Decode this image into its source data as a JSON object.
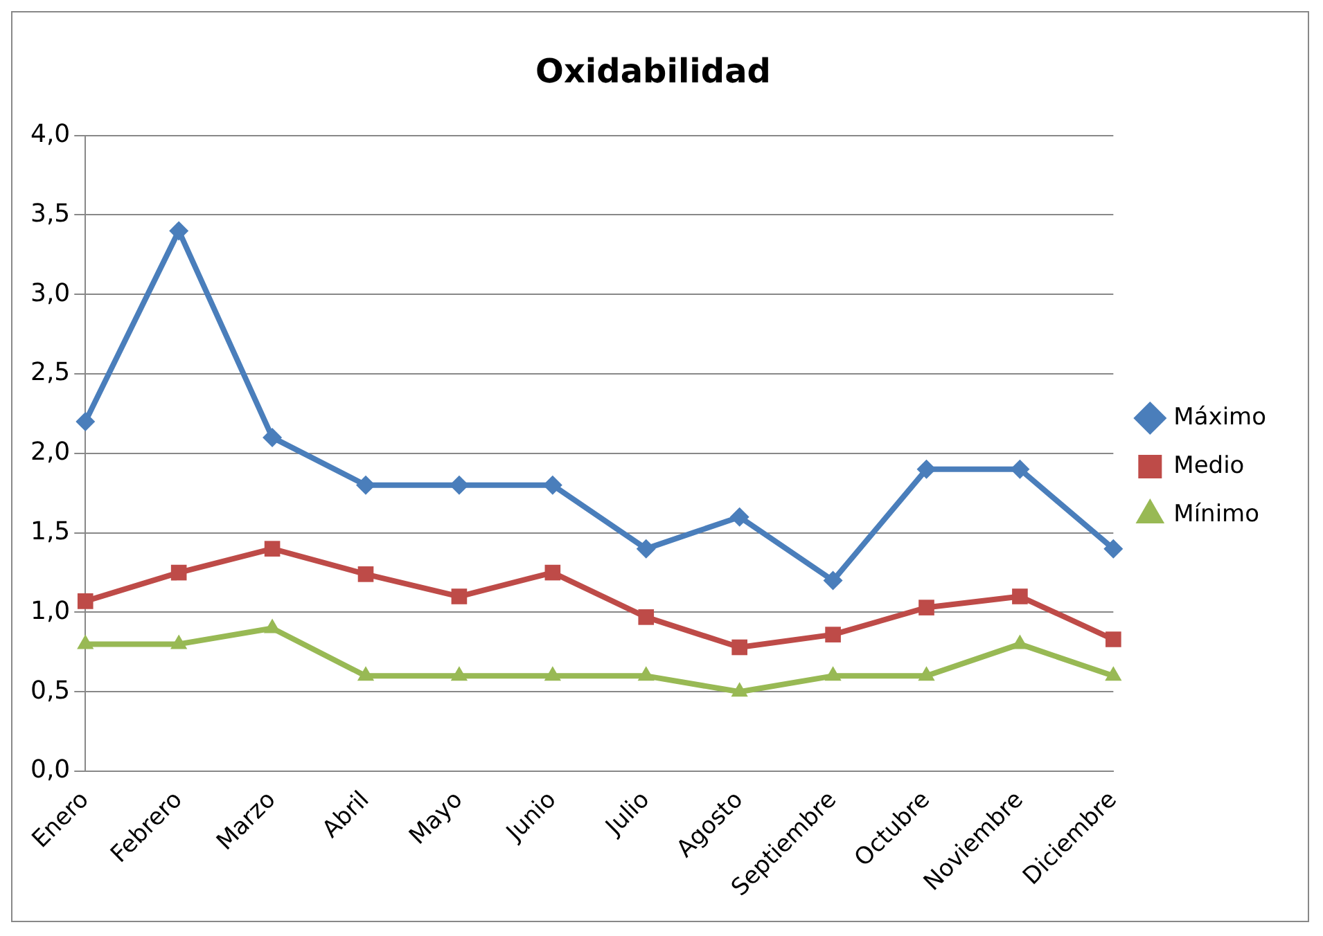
{
  "chart_data": {
    "type": "line",
    "title": "Oxidabilidad",
    "categories": [
      "Enero",
      "Febrero",
      "Marzo",
      "Abril",
      "Mayo",
      "Junio",
      "Julio",
      "Agosto",
      "Septiembre",
      "Octubre",
      "Noviembre",
      "Diciembre"
    ],
    "series": [
      {
        "name": "Máximo",
        "color": "#4a7ebb",
        "marker": "diamond",
        "values": [
          2.2,
          3.4,
          2.1,
          1.8,
          1.8,
          1.8,
          1.4,
          1.6,
          1.2,
          1.9,
          1.9,
          1.4
        ]
      },
      {
        "name": "Medio",
        "color": "#be4b48",
        "marker": "square",
        "values": [
          1.07,
          1.25,
          1.4,
          1.24,
          1.1,
          1.25,
          0.97,
          0.78,
          0.86,
          1.03,
          1.1,
          0.83
        ]
      },
      {
        "name": "Mínimo",
        "color": "#98b954",
        "marker": "triangle",
        "values": [
          0.8,
          0.8,
          0.9,
          0.6,
          0.6,
          0.6,
          0.6,
          0.5,
          0.6,
          0.6,
          0.8,
          0.6
        ]
      }
    ],
    "ylim": [
      0,
      4
    ],
    "yticks": [
      {
        "value": 0,
        "label": "0,0"
      },
      {
        "value": 0.5,
        "label": "0,5"
      },
      {
        "value": 1,
        "label": "1,0"
      },
      {
        "value": 1.5,
        "label": "1,5"
      },
      {
        "value": 2,
        "label": "2,0"
      },
      {
        "value": 2.5,
        "label": "2,5"
      },
      {
        "value": 3,
        "label": "3,0"
      },
      {
        "value": 3.5,
        "label": "3,5"
      },
      {
        "value": 4,
        "label": "4,0"
      }
    ],
    "grid": "y",
    "legend": "right",
    "line_style": "solid"
  }
}
